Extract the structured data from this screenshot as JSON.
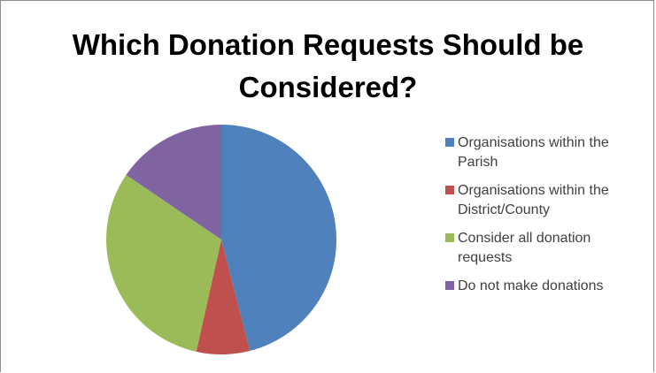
{
  "chart_data": {
    "type": "pie",
    "title_lines": [
      "Which Donation Requests Should be",
      "Considered?"
    ],
    "slices": [
      {
        "label": "Organisations within the Parish",
        "line1": "Organisations within the",
        "line2": "Parish",
        "value": 46,
        "color": "#4F81BD"
      },
      {
        "label": "Organisations within the District/County",
        "line1": "Organisations within the",
        "line2": "District/County",
        "value": 7.5,
        "color": "#C0504D"
      },
      {
        "label": "Consider all donation requests",
        "line1": "Consider all donation",
        "line2": "requests",
        "value": 31,
        "color": "#9BBB59"
      },
      {
        "label": "Do not make donations",
        "line1": "Do not make donations",
        "line2": "",
        "value": 15.5,
        "color": "#8064A2"
      }
    ],
    "legend_position": "right"
  }
}
